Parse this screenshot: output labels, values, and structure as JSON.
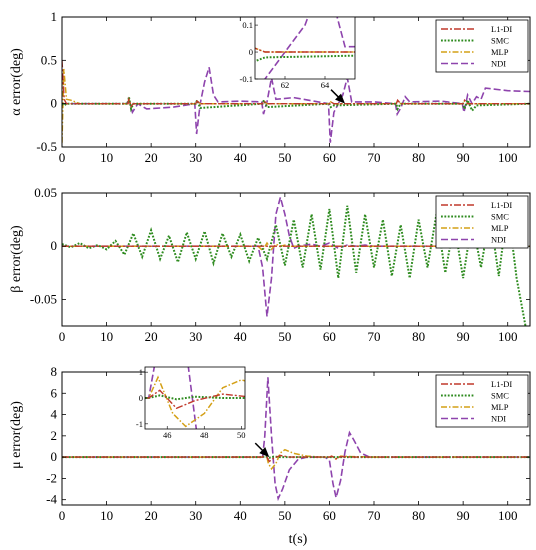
{
  "figure": {
    "xlabel": "t(s)"
  },
  "colors": {
    "L1-DI": "#c0392b",
    "SMC": "#2e8b1f",
    "MLP": "#d4a017",
    "NDI": "#8e44ad"
  },
  "chart_data": [
    {
      "type": "line",
      "ylabel": "α error(deg)",
      "xlabel": "",
      "xlim": [
        0,
        105
      ],
      "ylim": [
        -0.5,
        1
      ],
      "xticks": [
        0,
        10,
        20,
        30,
        40,
        50,
        60,
        70,
        80,
        90,
        100
      ],
      "yticks": [
        -0.5,
        0,
        0.5,
        1
      ],
      "ytick_labels": [
        "-0.5",
        "0",
        "0.5",
        "1"
      ],
      "legend": "top-right",
      "series": [
        {
          "name": "L1-DI",
          "x": [
            0,
            0.5,
            1,
            14.8,
            15,
            15.5,
            16,
            30,
            30.3,
            31,
            45,
            45.3,
            46,
            60,
            60.3,
            61,
            75,
            75.3,
            76,
            90,
            90.3,
            91,
            105
          ],
          "y": [
            0.5,
            0.05,
            0,
            0,
            0.05,
            -0.03,
            0,
            0,
            0.03,
            0,
            0,
            0.03,
            0,
            0,
            0.02,
            0,
            0,
            0.04,
            0,
            0,
            0.04,
            0,
            0
          ]
        },
        {
          "name": "SMC",
          "x": [
            0,
            0.5,
            1,
            14.8,
            15,
            15.5,
            16,
            30,
            30.3,
            31,
            45,
            45.3,
            46,
            60,
            60.3,
            61,
            75,
            75.3,
            76,
            90,
            90.3,
            91,
            92,
            93,
            105
          ],
          "y": [
            0,
            -0.02,
            0,
            0,
            0.08,
            -0.06,
            0,
            0,
            0.04,
            -0.05,
            0,
            0.04,
            -0.04,
            0,
            -0.04,
            -0.02,
            0,
            -0.06,
            0,
            0,
            -0.06,
            0.04,
            -0.08,
            -0.02,
            0
          ]
        },
        {
          "name": "MLP",
          "x": [
            0,
            0.4,
            1,
            2,
            4,
            14.8,
            15,
            15.5,
            16,
            30,
            30.3,
            31,
            45,
            45.3,
            46,
            60,
            60.3,
            61,
            75,
            75.3,
            76,
            90,
            90.3,
            91,
            105
          ],
          "y": [
            -0.45,
            0.4,
            0.05,
            0.04,
            0,
            0,
            0.06,
            -0.04,
            0,
            0,
            0.03,
            0,
            0,
            0.03,
            0,
            0,
            0.02,
            0,
            0,
            0.03,
            0,
            0,
            0.03,
            0,
            0
          ]
        },
        {
          "name": "NDI",
          "x": [
            0,
            14.5,
            15,
            15.8,
            17,
            19,
            25,
            29.8,
            30.2,
            31,
            32,
            33,
            34,
            35,
            40,
            44.8,
            45.2,
            46,
            47,
            48,
            52,
            59.8,
            60.2,
            61,
            62,
            63,
            64,
            65,
            70,
            74.8,
            75.2,
            76,
            77,
            78,
            85,
            89.8,
            90.2,
            91,
            92,
            93,
            94,
            95,
            100,
            105
          ],
          "y": [
            0,
            0,
            0.05,
            -0.1,
            0,
            -0.06,
            -0.04,
            0,
            -0.35,
            0,
            0.25,
            0.42,
            0.1,
            0.02,
            0.03,
            0.02,
            -0.12,
            0.02,
            0.3,
            0.05,
            0.07,
            0,
            -0.45,
            -0.1,
            0,
            0.1,
            0.3,
            0.02,
            0.02,
            0,
            -0.12,
            -0.05,
            0.08,
            0.02,
            0.03,
            0,
            -0.1,
            0.1,
            0,
            0.08,
            0.05,
            0.18,
            0.15,
            0.14
          ]
        }
      ],
      "inset": {
        "xlim": [
          60.5,
          65.5
        ],
        "ylim": [
          -0.1,
          0.13
        ],
        "xticks": [
          62,
          64
        ],
        "yticks": [
          -0.1,
          0,
          0.1
        ],
        "ytick_labels": [
          "-0.1",
          "0",
          "0.1"
        ],
        "pointer_x": 63.5,
        "pointer_y": 0
      }
    },
    {
      "type": "line",
      "ylabel": "β error(deg)",
      "xlabel": "",
      "xlim": [
        0,
        105
      ],
      "ylim": [
        -0.075,
        0.05
      ],
      "xticks": [
        0,
        10,
        20,
        30,
        40,
        50,
        60,
        70,
        80,
        90,
        100
      ],
      "yticks": [
        -0.05,
        0,
        0.05
      ],
      "ytick_labels": [
        "-0.05",
        "0",
        "0.05"
      ],
      "legend": "top-right",
      "series": [
        {
          "name": "L1-DI",
          "x": [
            0,
            105
          ],
          "y": [
            0,
            0
          ]
        },
        {
          "name": "SMC",
          "x": [
            0,
            2,
            4,
            6,
            8,
            10,
            12,
            14,
            16,
            18,
            20,
            22,
            24,
            26,
            28,
            30,
            32,
            34,
            36,
            38,
            40,
            42,
            44,
            46,
            48,
            50,
            52,
            54,
            56,
            58,
            60,
            62,
            64,
            66,
            68,
            70,
            72,
            74,
            76,
            78,
            80,
            82,
            84,
            86,
            88,
            90,
            92,
            94,
            96,
            98,
            100,
            102,
            104
          ],
          "y": [
            0.002,
            -0.001,
            0.003,
            -0.002,
            0.001,
            -0.003,
            0.005,
            -0.008,
            0.012,
            -0.01,
            0.015,
            -0.012,
            0.01,
            -0.015,
            0.013,
            -0.012,
            0.014,
            -0.016,
            0.012,
            -0.01,
            0.011,
            -0.014,
            0.008,
            -0.012,
            0.02,
            -0.018,
            0.025,
            -0.02,
            0.03,
            -0.022,
            0.035,
            -0.03,
            0.038,
            -0.025,
            0.03,
            -0.02,
            0.025,
            -0.028,
            0.02,
            -0.03,
            0.025,
            -0.02,
            0.03,
            -0.025,
            0.022,
            -0.03,
            0.025,
            -0.02,
            0.03,
            -0.028,
            0.038,
            -0.03,
            -0.075
          ]
        },
        {
          "name": "MLP",
          "x": [
            0,
            44,
            45,
            46,
            47,
            48,
            49,
            50,
            51,
            105
          ],
          "y": [
            0,
            0,
            -0.004,
            0.003,
            -0.003,
            0.002,
            0,
            0.001,
            0,
            0
          ]
        },
        {
          "name": "NDI",
          "x": [
            0,
            44,
            45,
            46,
            47,
            48,
            49,
            50,
            51,
            52,
            53,
            56,
            58,
            60,
            62,
            64,
            66,
            68,
            70,
            105
          ],
          "y": [
            0,
            0,
            -0.02,
            -0.066,
            -0.03,
            0.03,
            0.046,
            0.03,
            0.01,
            -0.002,
            0,
            0.002,
            0,
            0.003,
            -0.002,
            0.001,
            0,
            0.001,
            0,
            0
          ]
        }
      ]
    },
    {
      "type": "line",
      "ylabel": "μ error(deg)",
      "xlabel": "t(s)",
      "xlim": [
        0,
        105
      ],
      "ylim": [
        -4.5,
        8
      ],
      "xticks": [
        0,
        10,
        20,
        30,
        40,
        50,
        60,
        70,
        80,
        90,
        100
      ],
      "yticks": [
        -4,
        -2,
        0,
        2,
        4,
        6,
        8
      ],
      "ytick_labels": [
        "-4",
        "-2",
        "0",
        "2",
        "4",
        "6",
        "8"
      ],
      "legend": "top-right",
      "series": [
        {
          "name": "L1-DI",
          "x": [
            0,
            45,
            45.6,
            46.5,
            47.5,
            49,
            51,
            60,
            60.5,
            61.5,
            62.5,
            64,
            105
          ],
          "y": [
            0,
            0,
            0.3,
            -0.4,
            -0.1,
            0.15,
            0,
            0,
            0.1,
            -0.15,
            0.05,
            0,
            0
          ]
        },
        {
          "name": "SMC",
          "x": [
            0,
            45,
            45.6,
            46.5,
            47.5,
            49,
            51,
            105
          ],
          "y": [
            0,
            0,
            0.1,
            -0.05,
            0.05,
            0,
            0,
            0
          ]
        },
        {
          "name": "MLP",
          "x": [
            0,
            45,
            45.5,
            46.3,
            47,
            48,
            49,
            50,
            52,
            55,
            58,
            60,
            60.5,
            61.5,
            62.5,
            65,
            70,
            105
          ],
          "y": [
            0,
            0,
            0.8,
            -0.6,
            -1.1,
            -0.6,
            0.4,
            0.7,
            0.35,
            0.1,
            0,
            0,
            0.1,
            -0.2,
            0.1,
            0.05,
            0,
            0
          ]
        },
        {
          "name": "NDI",
          "x": [
            0,
            45,
            45.5,
            46.2,
            47,
            47.8,
            48.5,
            49.5,
            51,
            53,
            55,
            59,
            60,
            60.8,
            61.5,
            62.5,
            63.5,
            64.5,
            65.5,
            67,
            69,
            105
          ],
          "y": [
            0,
            0,
            2,
            7.5,
            2,
            -2.5,
            -3.9,
            -3,
            -1.2,
            -0.2,
            0,
            0,
            -0.3,
            -2.5,
            -3.8,
            -2.2,
            0.5,
            2.3,
            1.6,
            0.4,
            0,
            0
          ]
        }
      ],
      "inset": {
        "xlim": [
          44.8,
          50.2
        ],
        "ylim": [
          -1.2,
          1.2
        ],
        "xticks": [
          46,
          48,
          50
        ],
        "yticks": [
          -1,
          0,
          1
        ],
        "ytick_labels": [
          "-1",
          "0",
          "1"
        ],
        "pointer_x": 46.5,
        "pointer_y": 0
      }
    }
  ]
}
